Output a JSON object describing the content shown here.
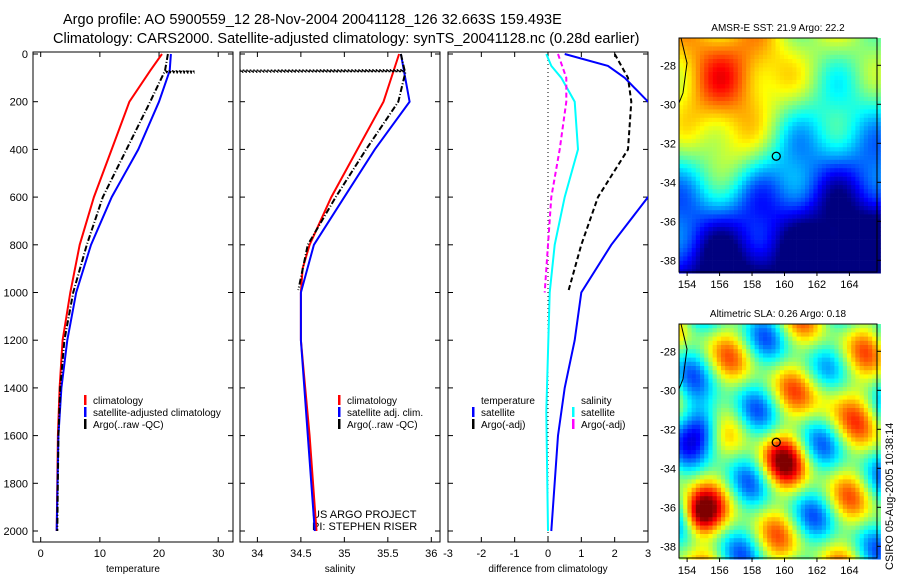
{
  "title_line1": "Argo profile: AO 5900559_12 28-Nov-2004 20041128_126 32.663S 159.493E",
  "title_line2": "Climatology: CARS2000. Satellite-adjusted climatology: synTS_20041128.nc (0.28d earlier)",
  "credit": "CSIRO 05-Aug-2005 10:38:14",
  "project_line1": "US ARGO PROJECT",
  "project_line2": "PI: STEPHEN RISER",
  "colors": {
    "climatology": "#ff0000",
    "satellite": "#0000ff",
    "argo": "#000000",
    "sal_satellite": "#00ffff",
    "sal_argo": "#ff00ff"
  },
  "chart_data": [
    {
      "type": "line",
      "xlabel": "temperature",
      "ylabel": "",
      "xlim": [
        -1.3,
        32.5
      ],
      "ylim": [
        2000,
        0
      ],
      "xticks": [
        0,
        10,
        20,
        30
      ],
      "yticks": [
        0,
        200,
        400,
        600,
        800,
        1000,
        1200,
        1400,
        1600,
        1800,
        2000
      ],
      "legend": [
        "climatology",
        "satellite-adjusted climatology",
        "Argo(..raw -QC)"
      ],
      "legend_position": "bottom-center",
      "series": [
        {
          "name": "climatology",
          "color": "#ff0000",
          "style": "solid",
          "depth": [
            0,
            70,
            200,
            400,
            600,
            800,
            1000,
            1200,
            1400,
            1600,
            2000
          ],
          "values": [
            20.5,
            18.5,
            15,
            12,
            9,
            6.6,
            5,
            3.7,
            3.2,
            2.9,
            2.7
          ]
        },
        {
          "name": "satellite-adjusted climatology",
          "color": "#0000ff",
          "style": "solid",
          "depth": [
            0,
            70,
            200,
            400,
            600,
            800,
            1000,
            1200,
            1400,
            1600,
            2000
          ],
          "values": [
            22,
            21.8,
            20,
            16.5,
            12,
            8.5,
            6,
            4.5,
            3.5,
            3,
            2.7
          ]
        },
        {
          "name": "Argo(..raw -QC)",
          "color": "#000000",
          "style": "dashdot",
          "depth": [
            0,
            70,
            200,
            400,
            600,
            800,
            1000,
            1200,
            1400,
            1600,
            2000
          ],
          "values": [
            21.5,
            21,
            18.5,
            14.5,
            10.5,
            7.8,
            5.5,
            4,
            3.3,
            3,
            2.8
          ]
        },
        {
          "name": "Argo QC-flagged",
          "color": "#000000",
          "style": "dotted",
          "depth": [
            70,
            72,
            74,
            76,
            78,
            80
          ],
          "values": [
            21,
            26,
            21,
            26,
            21,
            26
          ]
        }
      ]
    },
    {
      "type": "line",
      "xlabel": "salinity",
      "xlim": [
        33.8,
        36.1
      ],
      "ylim": [
        2000,
        0
      ],
      "xticks": [
        34,
        34.5,
        35,
        35.5,
        36
      ],
      "yticks": [
        0,
        200,
        400,
        600,
        800,
        1000,
        1200,
        1400,
        1600,
        1800,
        2000
      ],
      "legend": [
        "climatology",
        "satellite adj. clim.",
        "Argo(..raw -QC)"
      ],
      "legend_position": "bottom-center",
      "series": [
        {
          "name": "climatology",
          "color": "#ff0000",
          "style": "solid",
          "depth": [
            0,
            200,
            400,
            600,
            800,
            900,
            1000,
            1200,
            1400,
            1600,
            2000
          ],
          "values": [
            35.63,
            35.45,
            35.15,
            34.85,
            34.6,
            34.52,
            34.5,
            34.5,
            34.55,
            34.6,
            34.68
          ]
        },
        {
          "name": "satellite adj. clim.",
          "color": "#0000ff",
          "style": "solid",
          "depth": [
            0,
            100,
            200,
            400,
            600,
            800,
            1000,
            1200,
            1600,
            2000
          ],
          "values": [
            35.65,
            35.7,
            35.75,
            35.35,
            35.0,
            34.65,
            34.5,
            34.5,
            34.58,
            34.66
          ]
        },
        {
          "name": "Argo(..raw -QC)",
          "color": "#000000",
          "style": "dashdot",
          "depth": [
            0,
            80,
            200,
            400,
            600,
            800,
            990
          ],
          "values": [
            35.65,
            35.7,
            35.62,
            35.25,
            34.9,
            34.58,
            34.47
          ]
        },
        {
          "name": "Argo QC-flagged",
          "color": "#000000",
          "style": "dotted",
          "depth": [
            66,
            68,
            70,
            72,
            74,
            76
          ],
          "values": [
            35.7,
            33.8,
            35.7,
            33.8,
            35.7,
            33.8
          ]
        }
      ]
    },
    {
      "type": "line",
      "xlabel": "difference from climatology",
      "xlim": [
        -3,
        3
      ],
      "ylim": [
        2000,
        0
      ],
      "xticks": [
        -3,
        -2,
        -1,
        0,
        1,
        2,
        3
      ],
      "yticks": [
        0,
        200,
        400,
        600,
        800,
        1000,
        1200,
        1400,
        1600,
        1800,
        2000
      ],
      "legend_temperature": {
        "heading": "temperature",
        "items": [
          "satellite",
          "Argo(-adj)"
        ]
      },
      "legend_salinity": {
        "heading": "salinity",
        "items": [
          "satellite",
          "Argo(-adj)"
        ]
      },
      "series": [
        {
          "name": "temperature satellite",
          "color": "#0000ff",
          "style": "solid",
          "depth": [
            0,
            50,
            100,
            200,
            400,
            600,
            800,
            1000,
            1200,
            1400,
            1600,
            2000
          ],
          "values": [
            0.5,
            1.8,
            2.3,
            3,
            4.5,
            3,
            1.9,
            1,
            0.8,
            0.5,
            0.3,
            0.1
          ]
        },
        {
          "name": "temperature Argo(-adj)",
          "color": "#000000",
          "style": "dashed",
          "depth": [
            0,
            100,
            200,
            400,
            600,
            800,
            1000
          ],
          "values": [
            2,
            2.4,
            2.5,
            2.4,
            1.5,
            1.0,
            0.6
          ]
        },
        {
          "name": "salinity satellite",
          "color": "#00ffff",
          "style": "solid",
          "depth": [
            0,
            50,
            100,
            200,
            400,
            600,
            800,
            1000,
            1500,
            2000
          ],
          "values": [
            -0.05,
            0.1,
            0.4,
            0.8,
            0.9,
            0.5,
            0.2,
            0.05,
            -0.05,
            0
          ]
        },
        {
          "name": "salinity Argo(-adj)",
          "color": "#ff00ff",
          "style": "dashed",
          "depth": [
            0,
            100,
            200,
            400,
            600,
            800,
            1000
          ],
          "values": [
            0.3,
            0.55,
            0.55,
            0.35,
            0.1,
            0.0,
            -0.1
          ]
        }
      ]
    },
    {
      "type": "heatmap",
      "title": "AMSR-E SST: 21.9 Argo: 22.2",
      "xlim": [
        153.5,
        165.7
      ],
      "ylim": [
        -38.6,
        -26.6
      ],
      "xticks": [
        154,
        156,
        158,
        160,
        162,
        164
      ],
      "yticks": [
        -28,
        -30,
        -32,
        -34,
        -36,
        -38
      ],
      "argo_position": [
        159.493,
        -32.663
      ]
    },
    {
      "type": "heatmap",
      "title": "Altimetric SLA: 0.26 Argo: 0.18",
      "xlim": [
        153.5,
        165.7
      ],
      "ylim": [
        -38.6,
        -26.6
      ],
      "xticks": [
        154,
        156,
        158,
        160,
        162,
        164
      ],
      "yticks": [
        -28,
        -30,
        -32,
        -34,
        -36,
        -38
      ],
      "argo_position": [
        159.493,
        -32.663
      ]
    }
  ]
}
